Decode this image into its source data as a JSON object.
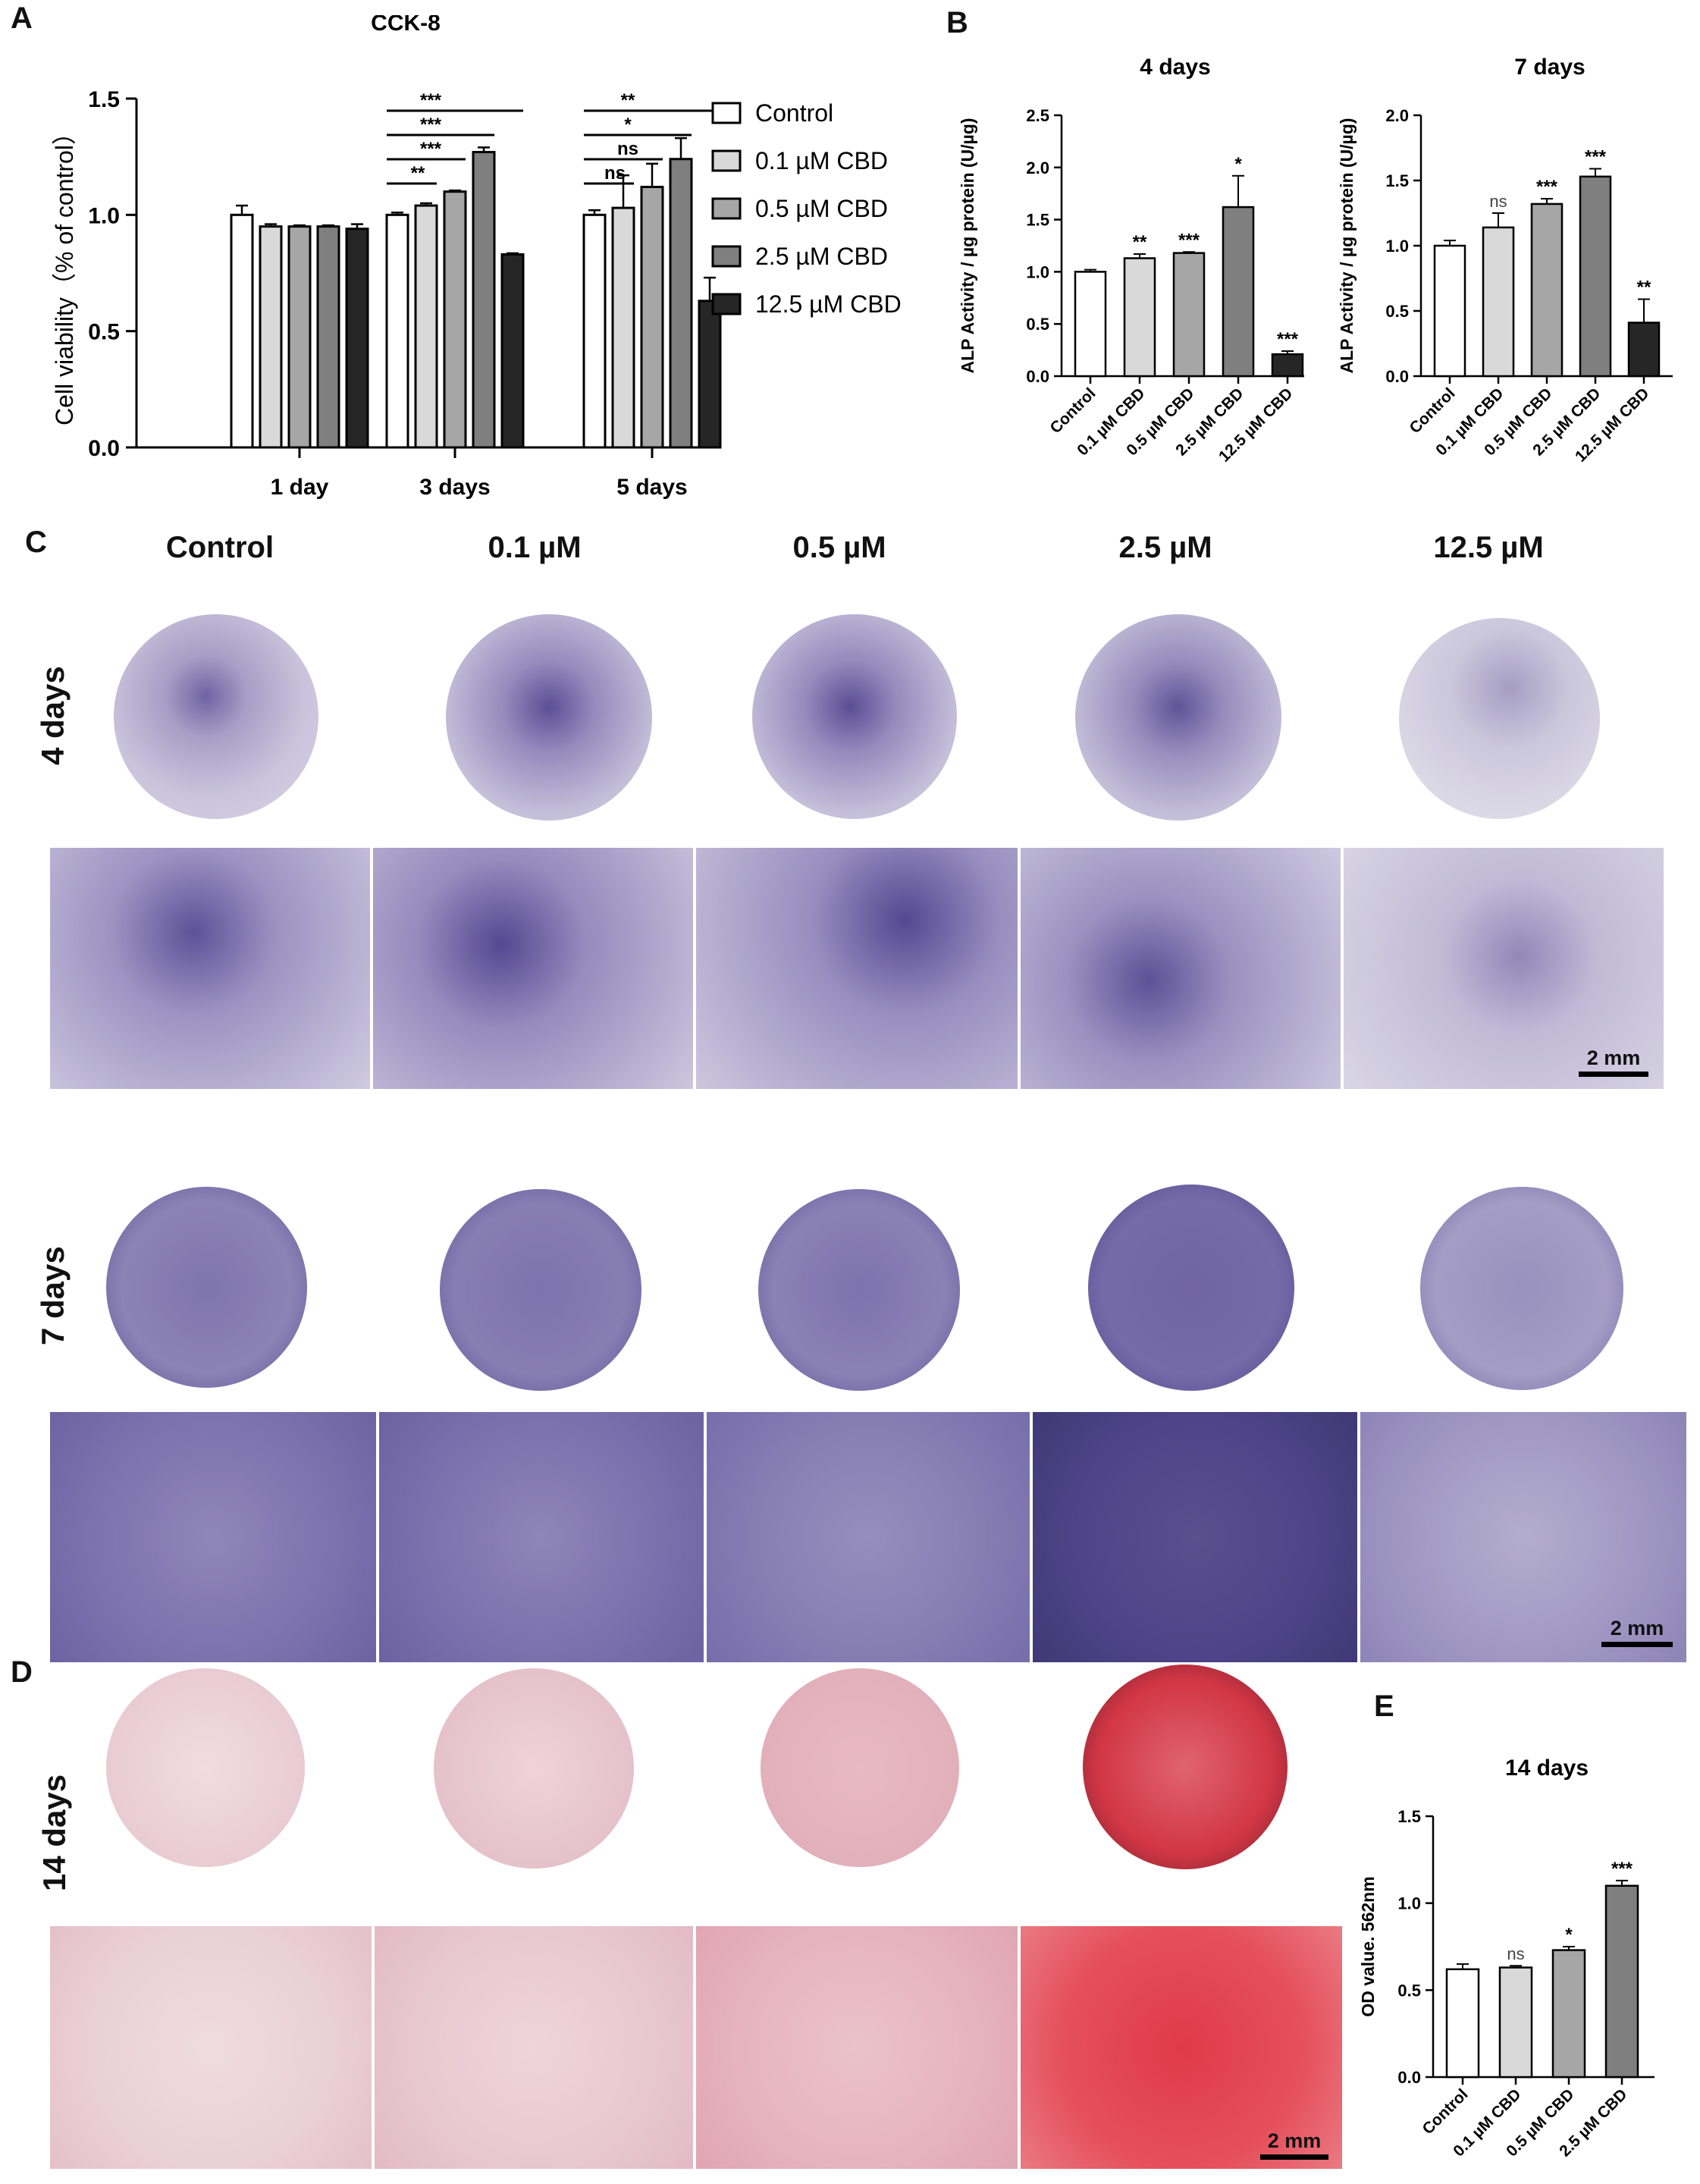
{
  "panels": {
    "A": "A",
    "B": "B",
    "C": "C",
    "D": "D",
    "E": "E"
  },
  "columns": {
    "c0": "Control",
    "c1": "0.1 µM",
    "c2": "0.5 µM",
    "c3": "2.5 µM",
    "c4": "12.5 µM"
  },
  "rows": {
    "r4": "4 days",
    "r7": "7 days",
    "r14": "14 days"
  },
  "scalebar": "2 mm",
  "stain_colors": {
    "alp": "#6a5aa0",
    "ars": "#d21a2a",
    "background_alp": "#e4e0ea",
    "background_ars": "#efd6dc"
  },
  "legend": [
    "Control",
    "0.1 µM CBD",
    "0.5 µM CBD",
    "2.5 µM CBD",
    "12.5 µM CBD"
  ],
  "legend_colors": [
    "#ffffff",
    "#d9d9d9",
    "#a6a6a6",
    "#7f7f7f",
    "#262626"
  ],
  "chart_data": [
    {
      "id": "A",
      "type": "bar",
      "title": "CCK-8",
      "ylabel": "Cell viability（% of control）",
      "xlabel": "",
      "categories": [
        "1 day",
        "3 days",
        "5 days"
      ],
      "yticks": [
        "0.0",
        "0.5",
        "1.0",
        "1.5"
      ],
      "ylim": [
        0,
        1.5
      ],
      "series": [
        {
          "name": "Control",
          "values": [
            1.0,
            1.0,
            1.0
          ],
          "errors": [
            0.04,
            0.01,
            0.02
          ]
        },
        {
          "name": "0.1 µM CBD",
          "values": [
            0.95,
            1.04,
            1.03
          ],
          "errors": [
            0.01,
            0.01,
            0.14
          ]
        },
        {
          "name": "0.5 µM CBD",
          "values": [
            0.95,
            1.1,
            1.12
          ],
          "errors": [
            0.005,
            0.005,
            0.1
          ]
        },
        {
          "name": "2.5 µM CBD",
          "values": [
            0.95,
            1.27,
            1.24
          ],
          "errors": [
            0.005,
            0.02,
            0.09
          ]
        },
        {
          "name": "12.5 µM CBD",
          "values": [
            0.94,
            0.83,
            0.63
          ],
          "errors": [
            0.02,
            0.005,
            0.1
          ]
        }
      ],
      "comparisons": [
        {
          "category": 1,
          "to_series": 1,
          "label": "**"
        },
        {
          "category": 1,
          "to_series": 2,
          "label": "***"
        },
        {
          "category": 1,
          "to_series": 3,
          "label": "***"
        },
        {
          "category": 1,
          "to_series": 4,
          "label": "***"
        },
        {
          "category": 2,
          "to_series": 1,
          "label": "ns"
        },
        {
          "category": 2,
          "to_series": 2,
          "label": "ns"
        },
        {
          "category": 2,
          "to_series": 3,
          "label": "*"
        },
        {
          "category": 2,
          "to_series": 4,
          "label": "**"
        }
      ],
      "legend_position": "right"
    },
    {
      "id": "B1",
      "type": "bar",
      "title": "4 days",
      "ylabel": "ALP Activity / µg protein (U/µg)",
      "categories": [
        "Control",
        "0.1 µM CBD",
        "0.5 µM CBD",
        "2.5 µM CBD",
        "12.5 µM CBD"
      ],
      "values": [
        1.0,
        1.13,
        1.18,
        1.62,
        0.21
      ],
      "errors": [
        0.02,
        0.04,
        0.01,
        0.3,
        0.03
      ],
      "labels": [
        "",
        "**",
        "***",
        "*",
        "***"
      ],
      "yticks": [
        "0.0",
        "0.5",
        "1.0",
        "1.5",
        "2.0",
        "2.5"
      ],
      "ylim": [
        0,
        2.5
      ]
    },
    {
      "id": "B2",
      "type": "bar",
      "title": "7 days",
      "ylabel": "ALP Activity / µg protein (U/µg)",
      "categories": [
        "Control",
        "0.1 µM CBD",
        "0.5 µM CBD",
        "2.5 µM CBD",
        "12.5 µM CBD"
      ],
      "values": [
        1.0,
        1.14,
        1.32,
        1.53,
        0.41
      ],
      "errors": [
        0.04,
        0.11,
        0.04,
        0.06,
        0.18
      ],
      "labels": [
        "",
        "ns",
        "***",
        "***",
        "**"
      ],
      "yticks": [
        "0.0",
        "0.5",
        "1.0",
        "1.5",
        "2.0"
      ],
      "ylim": [
        0,
        2.0
      ]
    },
    {
      "id": "E",
      "type": "bar",
      "title": "14 days",
      "ylabel": "OD value. 562nm",
      "categories": [
        "Control",
        "0.1 µM CBD",
        "0.5 µM CBD",
        "2.5 µM CBD"
      ],
      "values": [
        0.62,
        0.63,
        0.73,
        1.1
      ],
      "errors": [
        0.03,
        0.01,
        0.02,
        0.03
      ],
      "labels": [
        "",
        "ns",
        "*",
        "***"
      ],
      "yticks": [
        "0.0",
        "0.5",
        "1.0",
        "1.5"
      ],
      "ylim": [
        0,
        1.5
      ]
    }
  ]
}
